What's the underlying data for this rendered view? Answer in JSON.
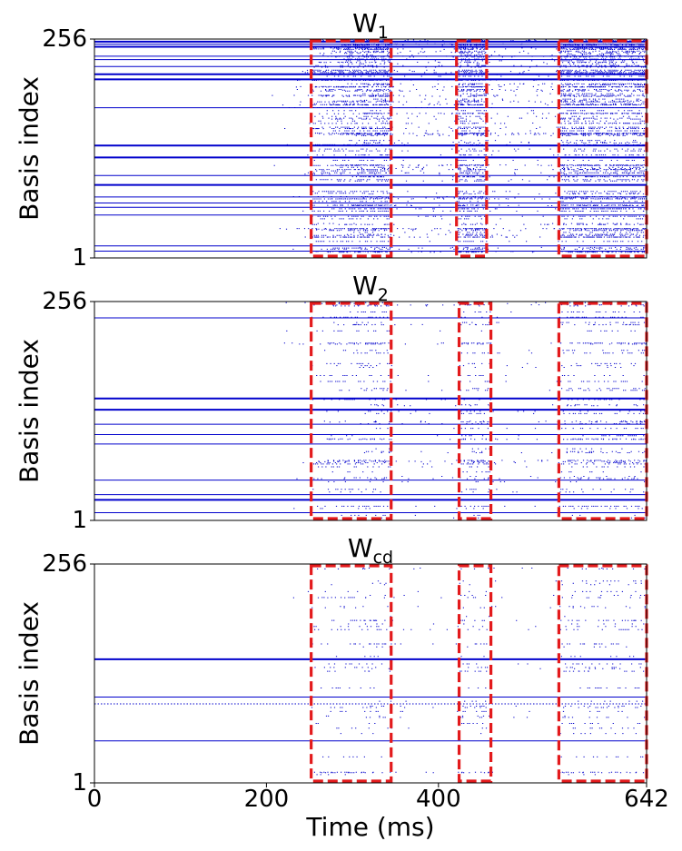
{
  "colors": {
    "raster": "#0000cc",
    "box": "#e31a1c",
    "axis": "#000000",
    "background": "#ffffff"
  },
  "chart_data": [
    {
      "type": "scatter",
      "title_base": "W",
      "title_sub": "1",
      "ylabel": "Basis index",
      "xlabel": "",
      "xlim": [
        0,
        642
      ],
      "ylim": [
        1,
        256
      ],
      "yticks": [
        "1",
        "256"
      ],
      "xticks": [],
      "continuous_rows": [
        {
          "y": 253,
          "start": 0,
          "w": 2
        },
        {
          "y": 250,
          "start": 0,
          "w": 1
        },
        {
          "y": 247,
          "start": 0,
          "w": 2
        },
        {
          "y": 236,
          "start": 0,
          "w": 1
        },
        {
          "y": 232,
          "start": 0,
          "w": 1
        },
        {
          "y": 224,
          "start": 0,
          "w": 1
        },
        {
          "y": 215,
          "start": 0,
          "w": 2
        },
        {
          "y": 209,
          "start": 0,
          "w": 2
        },
        {
          "y": 176,
          "start": 0,
          "w": 1
        },
        {
          "y": 132,
          "start": 0,
          "w": 2
        },
        {
          "y": 118,
          "start": 0,
          "w": 2
        },
        {
          "y": 97,
          "start": 0,
          "w": 1
        },
        {
          "y": 86,
          "start": 0,
          "w": 2
        },
        {
          "y": 72,
          "start": 0,
          "w": 1
        },
        {
          "y": 65,
          "start": 0,
          "w": 1
        },
        {
          "y": 60,
          "start": 0,
          "w": 1
        },
        {
          "y": 51,
          "start": 0,
          "w": 1
        },
        {
          "y": 15,
          "start": 0,
          "w": 1
        },
        {
          "y": 9,
          "start": 0,
          "w": 1
        }
      ],
      "boxes": [
        {
          "x0": 252,
          "x1": 345
        },
        {
          "x0": 421,
          "x1": 456
        },
        {
          "x0": 540,
          "x1": 642
        }
      ],
      "raster": {
        "density": 0.55,
        "rows": 150,
        "onset": 200,
        "seed": 11
      }
    },
    {
      "type": "scatter",
      "title_base": "W",
      "title_sub": "2",
      "ylabel": "Basis index",
      "xlabel": "",
      "xlim": [
        0,
        642
      ],
      "ylim": [
        1,
        256
      ],
      "yticks": [
        "1",
        "256"
      ],
      "xticks": [],
      "continuous_rows": [
        {
          "y": 237,
          "start": 0,
          "w": 1
        },
        {
          "y": 143,
          "start": 0,
          "w": 2
        },
        {
          "y": 130,
          "start": 0,
          "w": 2
        },
        {
          "y": 113,
          "start": 0,
          "w": 1
        },
        {
          "y": 101,
          "start": 0,
          "w": 1
        },
        {
          "y": 90,
          "start": 0,
          "w": 1
        },
        {
          "y": 48,
          "start": 0,
          "w": 1
        },
        {
          "y": 31,
          "start": 0,
          "w": 1
        },
        {
          "y": 25,
          "start": 0,
          "w": 2
        },
        {
          "y": 10,
          "start": 0,
          "w": 1
        }
      ],
      "boxes": [
        {
          "x0": 252,
          "x1": 345
        },
        {
          "x0": 424,
          "x1": 461
        },
        {
          "x0": 540,
          "x1": 642
        }
      ],
      "raster": {
        "density": 0.3,
        "rows": 60,
        "onset": 205,
        "seed": 23
      }
    },
    {
      "type": "scatter",
      "title_base": "W",
      "title_sub": "cd",
      "ylabel": "Basis index",
      "xlabel": "Time (ms)",
      "xlim": [
        0,
        642
      ],
      "ylim": [
        1,
        256
      ],
      "yticks": [
        "1",
        "256"
      ],
      "xticks": [
        {
          "value": 0,
          "label": "0"
        },
        {
          "value": 200,
          "label": "200"
        },
        {
          "value": 400,
          "label": "400"
        },
        {
          "value": 642,
          "label": "642"
        }
      ],
      "continuous_rows": [
        {
          "y": 145,
          "start": 0,
          "w": 2
        },
        {
          "y": 101,
          "start": 0,
          "w": 1
        },
        {
          "y": 93,
          "start": 0,
          "w": 1,
          "dotted": true
        },
        {
          "y": 50,
          "start": 0,
          "w": 1
        }
      ],
      "boxes": [
        {
          "x0": 252,
          "x1": 345
        },
        {
          "x0": 424,
          "x1": 461
        },
        {
          "x0": 540,
          "x1": 642
        }
      ],
      "raster": {
        "density": 0.2,
        "rows": 40,
        "onset": 205,
        "seed": 37
      }
    }
  ]
}
